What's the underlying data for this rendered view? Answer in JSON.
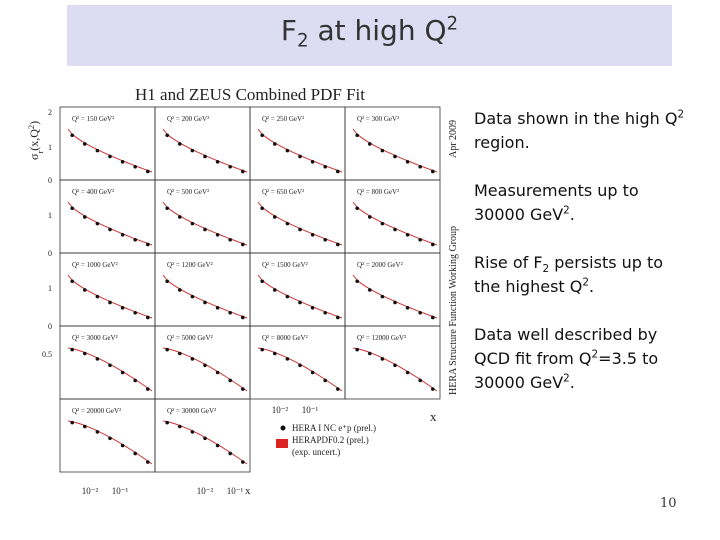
{
  "title": [
    {
      "text": "F"
    },
    {
      "text": "2",
      "script": "sub"
    },
    {
      "text": " at high Q"
    },
    {
      "text": "2",
      "script": "sup"
    }
  ],
  "figure": {
    "title": "H1 and ZEUS Combined PDF Fit",
    "y_label": [
      {
        "text": "σ"
      },
      {
        "text": "r",
        "script": "sub"
      },
      {
        "text": "(x,Q"
      },
      {
        "text": "2",
        "script": "sup"
      },
      {
        "text": ")"
      }
    ],
    "panels": [
      "Q² = 150 GeV²",
      "Q² = 200 GeV²",
      "Q² = 250 GeV²",
      "Q² = 300 GeV²",
      "Q² = 400 GeV²",
      "Q² = 500 GeV²",
      "Q² = 650 GeV²",
      "Q² = 800 GeV²",
      "Q² = 1000 GeV²",
      "Q² = 1200 GeV²",
      "Q² = 1500 GeV²",
      "Q² = 2000 GeV²",
      "Q² = 3000 GeV²",
      "Q² = 5000 GeV²",
      "Q² = 8000 GeV²",
      "Q² = 12000 GeV²",
      "Q² = 20000 GeV²",
      "Q² = 30000 GeV²"
    ],
    "y_tick_labels": [
      [
        "2",
        "1",
        "0"
      ],
      [
        "1",
        "0"
      ],
      [
        "1",
        "0"
      ],
      [
        "0.5"
      ]
    ],
    "x_tick_labels": [
      "10⁻²",
      "10⁻¹"
    ],
    "x_label": "x",
    "date": "Apr 2009",
    "group": "HERA Structure Function Working Group",
    "legend": [
      [
        "HERA I NC e⁺p (prel.)"
      ],
      [
        "HERAPDF0.2 (prel.)",
        "(exp. uncert.)"
      ]
    ]
  },
  "bullets": [
    [
      {
        "text": "Data shown in the high Q"
      },
      {
        "text": "2",
        "script": "sup"
      },
      {
        "text": " region."
      }
    ],
    [
      {
        "text": "Measurements up to 30000 GeV"
      },
      {
        "text": "2",
        "script": "sup"
      },
      {
        "text": "."
      }
    ],
    [
      {
        "text": "Rise of F"
      },
      {
        "text": "2",
        "script": "sub"
      },
      {
        "text": " persists up to the highest Q"
      },
      {
        "text": "2",
        "script": "sup"
      },
      {
        "text": "."
      }
    ],
    [
      {
        "text": "Data well described by QCD fit from Q"
      },
      {
        "text": "2",
        "script": "sup"
      },
      {
        "text": "=3.5 to 30000 GeV"
      },
      {
        "text": "2",
        "script": "sup"
      },
      {
        "text": "."
      }
    ]
  ],
  "page_number": "10"
}
